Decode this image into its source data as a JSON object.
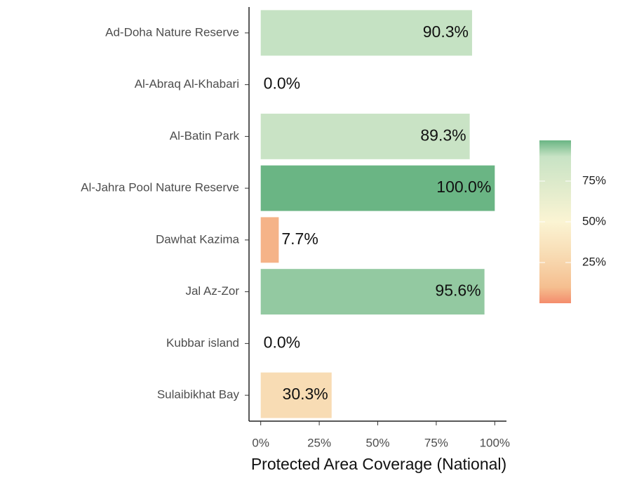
{
  "chart_data": {
    "type": "bar",
    "orientation": "horizontal",
    "categories": [
      "Ad-Doha Nature Reserve",
      "Al-Abraq Al-Khabari",
      "Al-Batin Park",
      "Al-Jahra Pool Nature Reserve",
      "Dawhat Kazima",
      "Jal Az-Zor",
      "Kubbar island",
      "Sulaibikhat Bay"
    ],
    "values": [
      90.3,
      0,
      89.3,
      100,
      7.7,
      95.6,
      0,
      30.3
    ],
    "value_labels": [
      "90.3%",
      "0.0%",
      "89.3%",
      "100.0%",
      "7.7%",
      "95.6%",
      "0.0%",
      "30.3%"
    ],
    "xlabel": "Protected Area Coverage (National)",
    "xlim": [
      -5,
      105
    ],
    "xticks": [
      {
        "value": 0,
        "label": "0%"
      },
      {
        "value": 25,
        "label": "25%"
      },
      {
        "value": 50,
        "label": "50%"
      },
      {
        "value": 75,
        "label": "75%"
      },
      {
        "value": 100,
        "label": "100%"
      }
    ],
    "color_scale": [
      [
        0,
        "#f48c6c"
      ],
      [
        10,
        "#f5bf90"
      ],
      [
        30,
        "#f8dcb4"
      ],
      [
        50,
        "#fbf4d3"
      ],
      [
        90,
        "#c8e3c5"
      ],
      [
        100,
        "#6ab584"
      ]
    ],
    "colorbar_lim": [
      0,
      100
    ],
    "colorbar_ticks": [
      {
        "value": 25,
        "label": "25%"
      },
      {
        "value": 50,
        "label": "50%"
      },
      {
        "value": 75,
        "label": "75%"
      }
    ],
    "grid": false
  }
}
